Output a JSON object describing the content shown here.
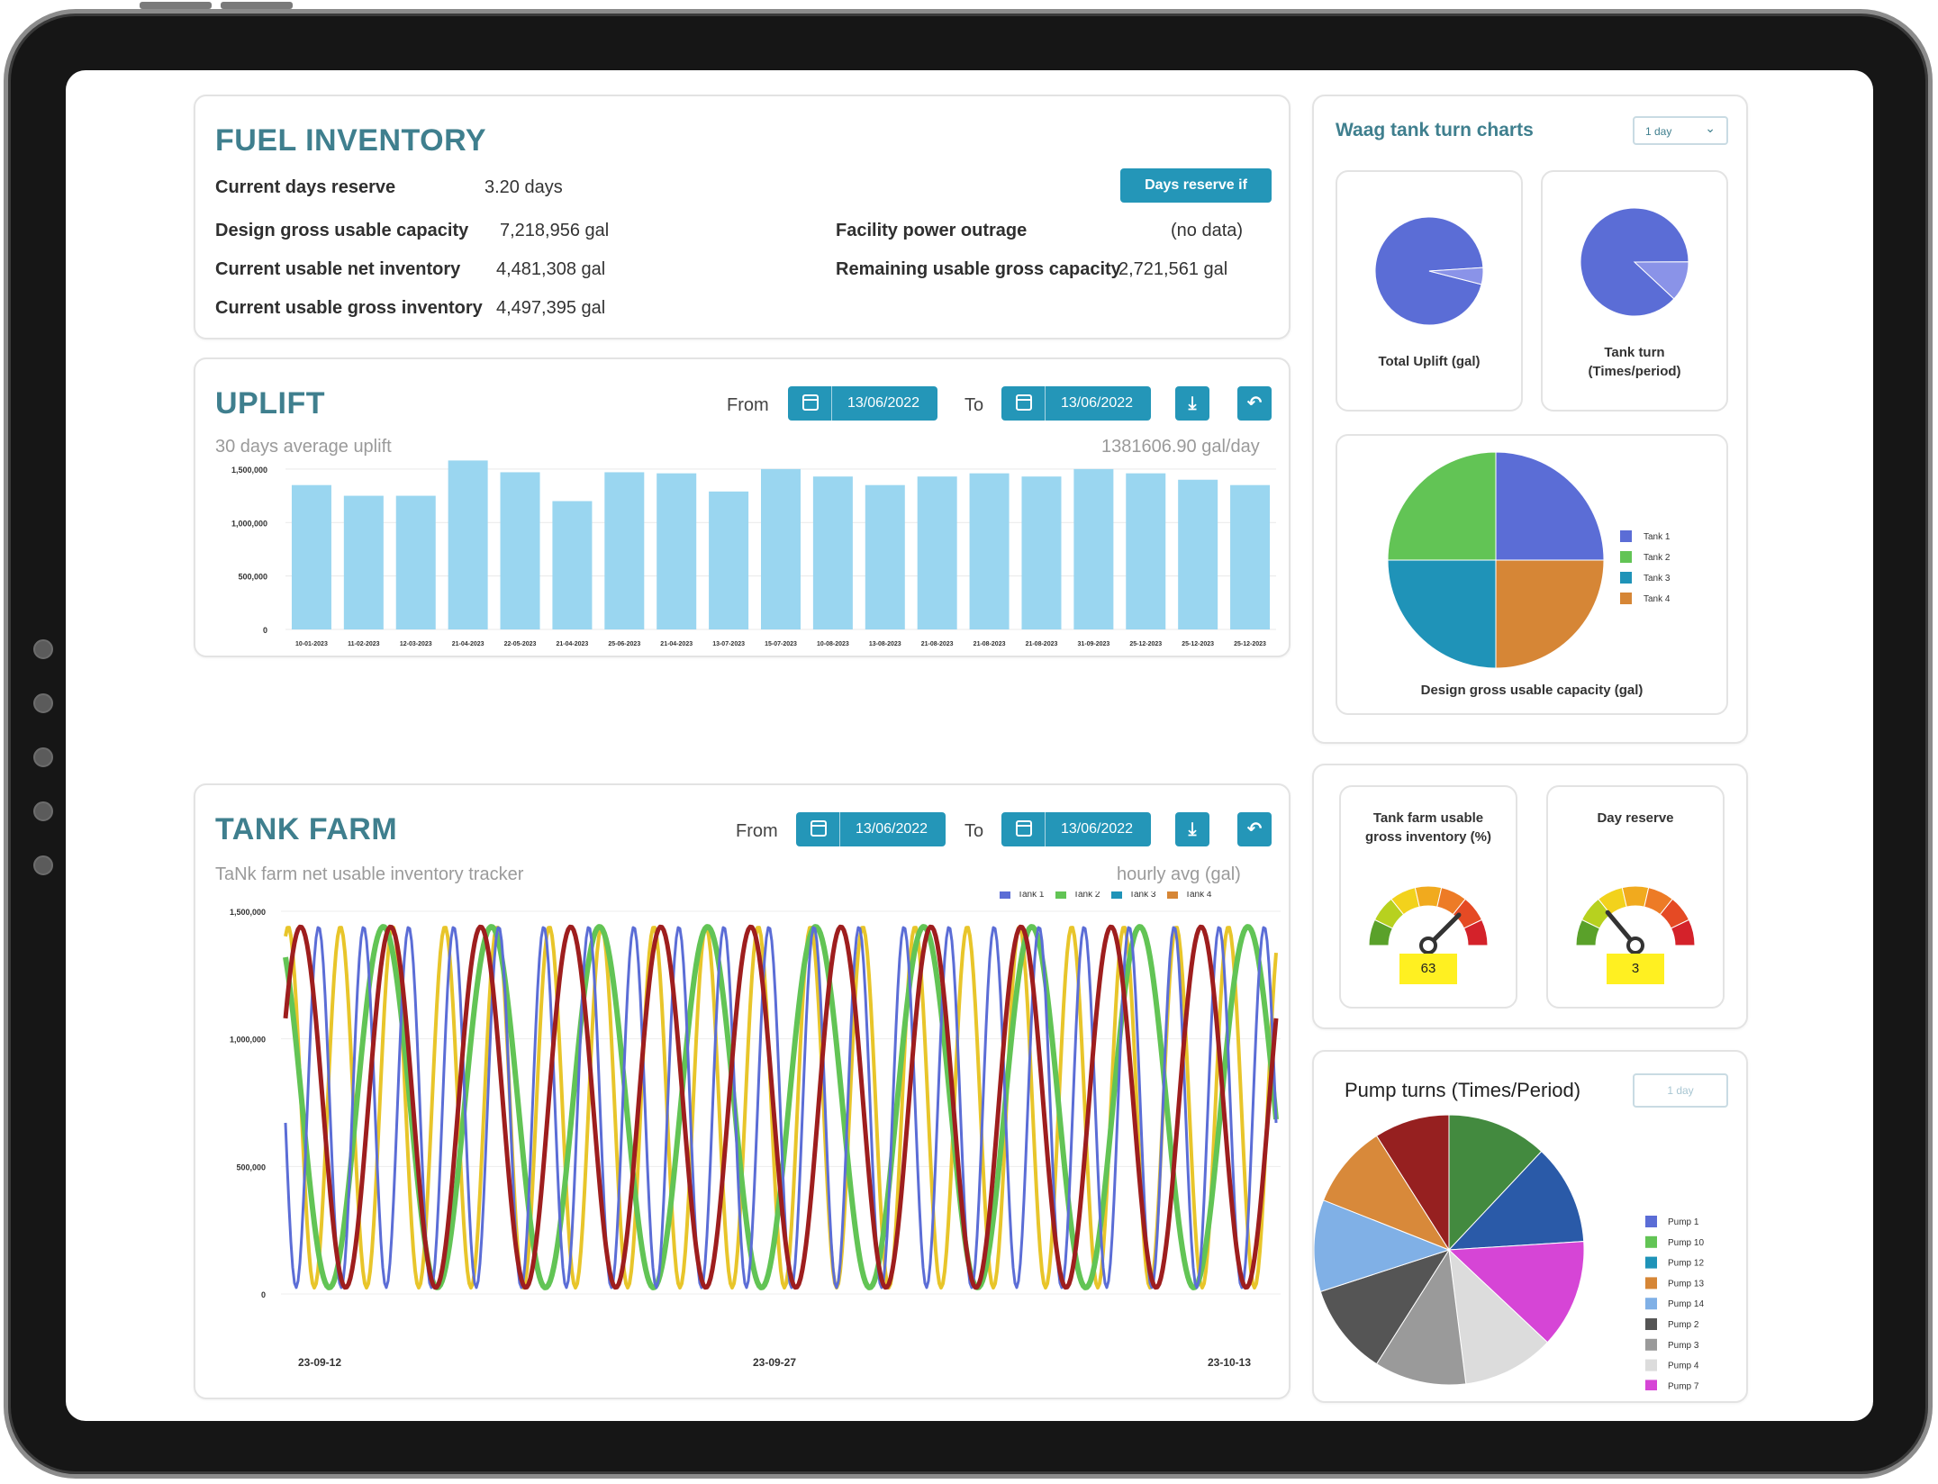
{
  "fuel_inventory": {
    "title": "FUEL INVENTORY",
    "button_label": "Days reserve if",
    "rows_left": [
      {
        "label": "Current days reserve",
        "value": "3.20 days"
      },
      {
        "label": "Design gross usable capacity",
        "value": "7,218,956 gal"
      },
      {
        "label": "Current usable net inventory",
        "value": "4,481,308 gal"
      },
      {
        "label": "Current usable gross inventory",
        "value": "4,497,395 gal"
      }
    ],
    "rows_right": [
      {
        "label": "Facility power outrage",
        "value": "(no data)"
      },
      {
        "label": "Remaining usable gross capacity",
        "value": "2,721,561 gal"
      }
    ]
  },
  "uplift": {
    "title": "UPLIFT",
    "from_label": "From",
    "to_label": "To",
    "from_date": "13/06/2022",
    "to_date": "13/06/2022",
    "subtitle": "30 days average uplift",
    "average_value": "1381606.90 gal/day"
  },
  "tank_farm": {
    "title": "TANK FARM",
    "from_label": "From",
    "to_label": "To",
    "from_date": "13/06/2022",
    "to_date": "13/06/2022",
    "subtitle": "TaNk farm net usable inventory tracker",
    "unit_note": "hourly avg (gal)"
  },
  "waag": {
    "title": "Waag tank turn charts",
    "select_value": "1 day",
    "pie1_label": "Total Uplift (gal)",
    "pie2_label": "Tank turn",
    "pie2_label2": "(Times/period)",
    "pie3_label": "Design gross usable capacity (gal)"
  },
  "gauges": {
    "g1_label1": "Tank farm usable",
    "g1_label2": "gross inventory (%)",
    "g1_value": "63",
    "g2_label": "Day reserve",
    "g2_value": "3"
  },
  "pump": {
    "title": "Pump turns (Times/Period)",
    "select_value": "1 day"
  },
  "colors": {
    "accent": "#2496b8",
    "title": "#3f7f8e",
    "bar": "#9ad6f0",
    "tank1": "#5b6dd6",
    "tank2": "#62c455",
    "tank3": "#1f93b8",
    "tank4": "#d68636",
    "tank_line4": "#9e1e1e",
    "tank_line_yellow": "#e8c52a"
  },
  "chart_data": [
    {
      "type": "bar",
      "categories": [
        "10-01-2023",
        "11-02-2023",
        "12-03-2023",
        "21-04-2023",
        "22-05-2023",
        "21-04-2023",
        "25-06-2023",
        "21-04-2023",
        "13-07-2023",
        "15-07-2023",
        "10-08-2023",
        "13-08-2023",
        "21-08-2023",
        "21-08-2023",
        "21-08-2023",
        "31-09-2023",
        "25-12-2023",
        "25-12-2023",
        "25-12-2023"
      ],
      "values": [
        1350000,
        1250000,
        1250000,
        1580000,
        1470000,
        1200000,
        1470000,
        1460000,
        1290000,
        1500000,
        1430000,
        1350000,
        1430000,
        1460000,
        1430000,
        1500000,
        1460000,
        1400000,
        1350000
      ],
      "y_ticks": [
        "0",
        "500,000",
        "1,000,000",
        "1,500,000"
      ],
      "ylim": [
        0,
        1600000
      ]
    },
    {
      "type": "line",
      "x_ticks": [
        "23-09-12",
        "23-09-27",
        "23-10-13"
      ],
      "y_ticks": [
        "0",
        "500,000",
        "1,000,000",
        "1,500,000"
      ],
      "ylim": [
        0,
        1500000
      ],
      "legend": [
        "Tank 1",
        "Tank 2",
        "Tank 3",
        "Tank 4"
      ]
    },
    {
      "type": "pie",
      "label": "Total Uplift (gal)",
      "values": [
        95,
        5
      ]
    },
    {
      "type": "pie",
      "label": "Tank turn (Times/period)",
      "values": [
        88,
        12
      ]
    },
    {
      "type": "pie",
      "label": "Design gross usable capacity (gal)",
      "categories": [
        "Tank 1",
        "Tank 2",
        "Tank 3",
        "Tank 4"
      ],
      "values": [
        25,
        25,
        25,
        25
      ]
    },
    {
      "type": "pie",
      "label": "Pump turns (Times/Period)",
      "categories": [
        "Pump 1",
        "Pump 10",
        "Pump 12",
        "Pump 13",
        "Pump 14",
        "Pump 2",
        "Pump 3",
        "Pump 4",
        "Pump 7"
      ],
      "colors": [
        "#438a3f",
        "#2a5aa8",
        "#d645d6",
        "#dcdcdc",
        "#9a9a9a",
        "#555555",
        "#80b0e6",
        "#d8893a",
        "#962020"
      ],
      "legend_colors": [
        "#5b6dd6",
        "#62c455",
        "#1f93b8",
        "#d68636",
        "#80b0e6",
        "#555555",
        "#9a9a9a",
        "#dcdcdc",
        "#d645d6"
      ],
      "values": [
        12,
        12,
        13,
        11,
        11,
        11,
        11,
        10,
        9
      ]
    }
  ]
}
